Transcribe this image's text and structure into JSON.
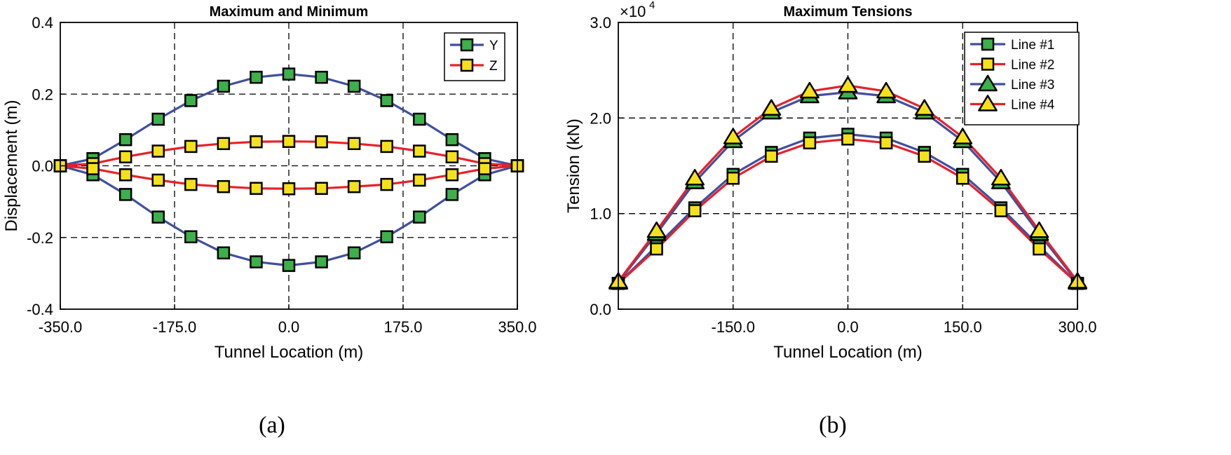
{
  "chart_data": [
    {
      "type": "line",
      "panel_caption": "(a)",
      "title": "Maximum and Minimum",
      "xlabel": "Tunnel Location (m)",
      "ylabel": "Displacement (m)",
      "xlim": [
        -350,
        350
      ],
      "ylim": [
        -0.4,
        0.4
      ],
      "xticks": [
        -350,
        -175,
        0,
        175,
        350
      ],
      "xtick_labels": [
        "-350.0",
        "-175.0",
        "0.0",
        "175.0",
        "350.0"
      ],
      "yticks": [
        -0.4,
        -0.2,
        0.0,
        0.2,
        0.4
      ],
      "ytick_labels": [
        "-0.4",
        "-0.2",
        "0.0",
        "0.2",
        "0.4"
      ],
      "grid": "dashed, at interior ticks",
      "legend_position": "top-right",
      "legend": [
        {
          "name": "Y",
          "line_color": "#3f4fa0",
          "marker": "square",
          "marker_color": "#3cb04a"
        },
        {
          "name": "Z",
          "line_color": "#e8202a",
          "marker": "square",
          "marker_color": "#f5e11a"
        }
      ],
      "series": [
        {
          "name": "Y (max)",
          "line_color": "#3f4fa0",
          "marker": "square",
          "marker_color": "#3cb04a",
          "x": [
            -350,
            -300,
            -250,
            -200,
            -150,
            -100,
            -50,
            0,
            50,
            100,
            150,
            200,
            250,
            300,
            350
          ],
          "y": [
            0.0,
            0.02,
            0.073,
            0.13,
            0.182,
            0.222,
            0.247,
            0.256,
            0.247,
            0.222,
            0.182,
            0.13,
            0.073,
            0.02,
            0.0
          ]
        },
        {
          "name": "Y (min)",
          "line_color": "#3f4fa0",
          "marker": "square",
          "marker_color": "#3cb04a",
          "x": [
            -350,
            -300,
            -250,
            -200,
            -150,
            -100,
            -50,
            0,
            50,
            100,
            150,
            200,
            250,
            300,
            350
          ],
          "y": [
            0.0,
            -0.025,
            -0.08,
            -0.143,
            -0.198,
            -0.243,
            -0.268,
            -0.278,
            -0.268,
            -0.243,
            -0.198,
            -0.143,
            -0.08,
            -0.025,
            0.0
          ]
        },
        {
          "name": "Z (max)",
          "line_color": "#e8202a",
          "marker": "square",
          "marker_color": "#f5e11a",
          "x": [
            -350,
            -300,
            -250,
            -200,
            -150,
            -100,
            -50,
            0,
            50,
            100,
            150,
            200,
            250,
            300,
            350
          ],
          "y": [
            0.0,
            0.006,
            0.025,
            0.041,
            0.054,
            0.062,
            0.067,
            0.068,
            0.067,
            0.062,
            0.054,
            0.041,
            0.025,
            0.006,
            0.0
          ]
        },
        {
          "name": "Z (min)",
          "line_color": "#e8202a",
          "marker": "square",
          "marker_color": "#f5e11a",
          "x": [
            -350,
            -300,
            -250,
            -200,
            -150,
            -100,
            -50,
            0,
            50,
            100,
            150,
            200,
            250,
            300,
            350
          ],
          "y": [
            0.0,
            -0.008,
            -0.025,
            -0.04,
            -0.052,
            -0.058,
            -0.063,
            -0.064,
            -0.063,
            -0.058,
            -0.052,
            -0.04,
            -0.025,
            -0.008,
            0.0
          ]
        }
      ]
    },
    {
      "type": "line",
      "panel_caption": "(b)",
      "title": "Maximum Tensions",
      "xlabel": "Tunnel Location (m)",
      "ylabel": "Tension (kN)",
      "y_multiplier_base": "×10",
      "y_multiplier_exp": "4",
      "xlim": [
        -300,
        300
      ],
      "ylim": [
        0,
        3.0
      ],
      "xticks": [
        -150,
        0,
        150,
        300
      ],
      "xtick_labels": [
        "-150.0",
        "0.0",
        "150.0",
        "300.0"
      ],
      "yticks": [
        0,
        1.0,
        2.0,
        3.0
      ],
      "ytick_labels": [
        "0.0",
        "1.0",
        "2.0",
        "3.0"
      ],
      "grid": "dashed, at interior ticks",
      "legend_position": "top-right",
      "legend": [
        {
          "name": "Line #1",
          "line_color": "#3f4fa0",
          "marker": "square",
          "marker_color": "#3cb04a"
        },
        {
          "name": "Line #2",
          "line_color": "#e8202a",
          "marker": "square",
          "marker_color": "#f5e11a"
        },
        {
          "name": "Line #3",
          "line_color": "#3f4fa0",
          "marker": "triangle",
          "marker_color": "#3cb04a"
        },
        {
          "name": "Line #4",
          "line_color": "#e8202a",
          "marker": "triangle",
          "marker_color": "#f5e11a"
        }
      ],
      "series": [
        {
          "name": "Line #1",
          "line_color": "#3f4fa0",
          "marker": "square",
          "marker_color": "#3cb04a",
          "x": [
            -300,
            -250,
            -200,
            -150,
            -100,
            -50,
            0,
            50,
            100,
            150,
            200,
            250,
            300
          ],
          "y": [
            0.27,
            0.66,
            1.06,
            1.41,
            1.64,
            1.79,
            1.83,
            1.79,
            1.64,
            1.41,
            1.06,
            0.66,
            0.27
          ]
        },
        {
          "name": "Line #2",
          "line_color": "#e8202a",
          "marker": "square",
          "marker_color": "#f5e11a",
          "x": [
            -300,
            -250,
            -200,
            -150,
            -100,
            -50,
            0,
            50,
            100,
            150,
            200,
            250,
            300
          ],
          "y": [
            0.27,
            0.63,
            1.03,
            1.37,
            1.6,
            1.74,
            1.78,
            1.74,
            1.6,
            1.37,
            1.03,
            0.63,
            0.27
          ]
        },
        {
          "name": "Line #3",
          "line_color": "#3f4fa0",
          "marker": "triangle",
          "marker_color": "#3cb04a",
          "x": [
            -300,
            -250,
            -200,
            -150,
            -100,
            -50,
            0,
            50,
            100,
            150,
            200,
            250,
            300
          ],
          "y": [
            0.28,
            0.79,
            1.33,
            1.76,
            2.06,
            2.23,
            2.27,
            2.23,
            2.06,
            1.76,
            1.33,
            0.79,
            0.28
          ]
        },
        {
          "name": "Line #4",
          "line_color": "#e8202a",
          "marker": "triangle",
          "marker_color": "#f5e11a",
          "x": [
            -300,
            -250,
            -200,
            -150,
            -100,
            -50,
            0,
            50,
            100,
            150,
            200,
            250,
            300
          ],
          "y": [
            0.29,
            0.82,
            1.37,
            1.8,
            2.1,
            2.28,
            2.34,
            2.28,
            2.1,
            1.8,
            1.37,
            0.82,
            0.29
          ]
        }
      ]
    }
  ]
}
